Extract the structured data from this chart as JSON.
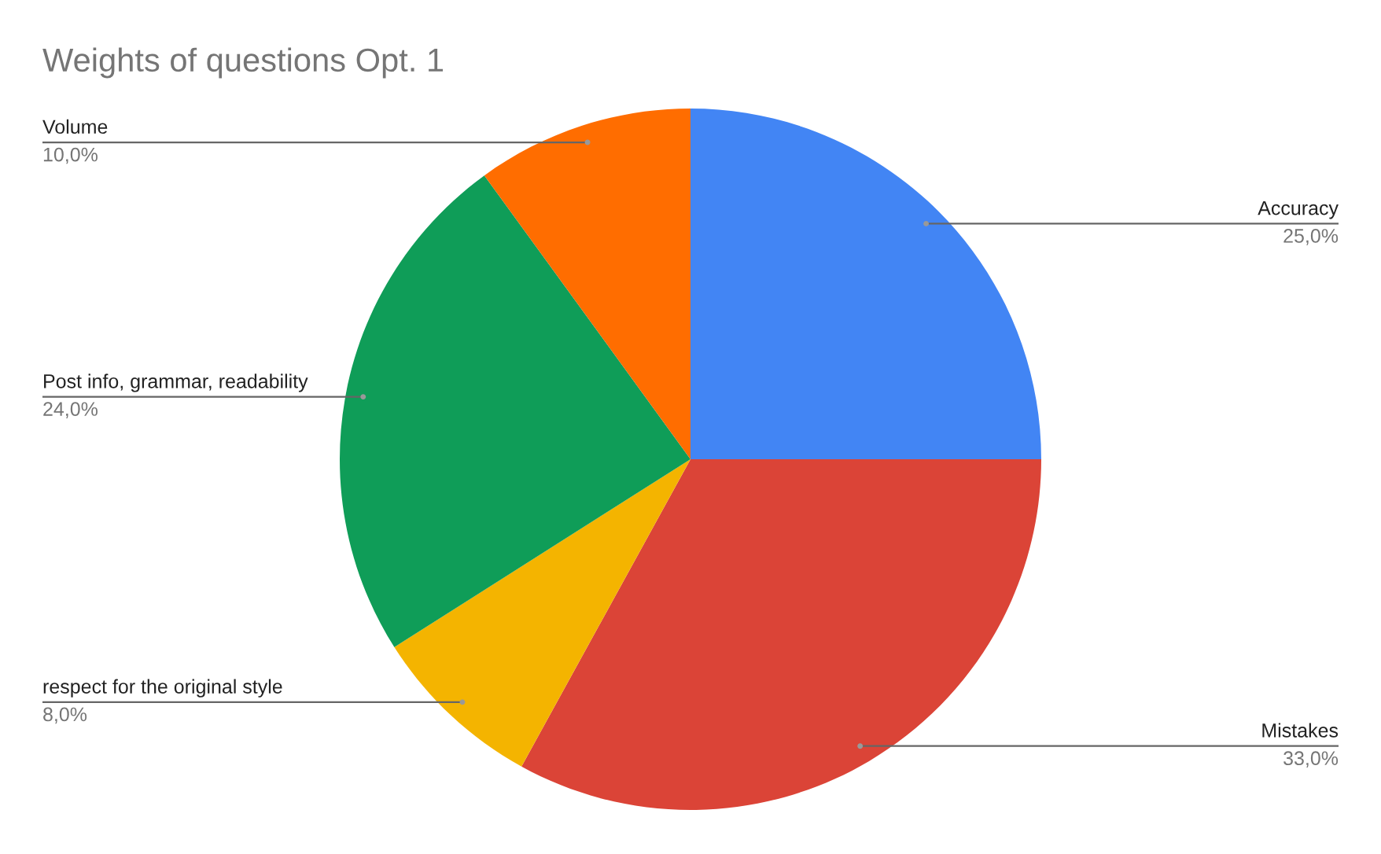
{
  "chart_data": {
    "type": "pie",
    "title": "Weights of questions Opt. 1",
    "categories": [
      "Accuracy",
      "Mistakes",
      "respect for the original style",
      "Post info, grammar, readability",
      "Volume"
    ],
    "values": [
      25,
      33,
      8,
      24,
      10
    ],
    "colors": [
      "#4285f4",
      "#db4437",
      "#f4b400",
      "#0f9d58",
      "#ff6d00"
    ],
    "value_labels": [
      "25,0%",
      "33,0%",
      "8,0%",
      "24,0%",
      "10,0%"
    ]
  }
}
